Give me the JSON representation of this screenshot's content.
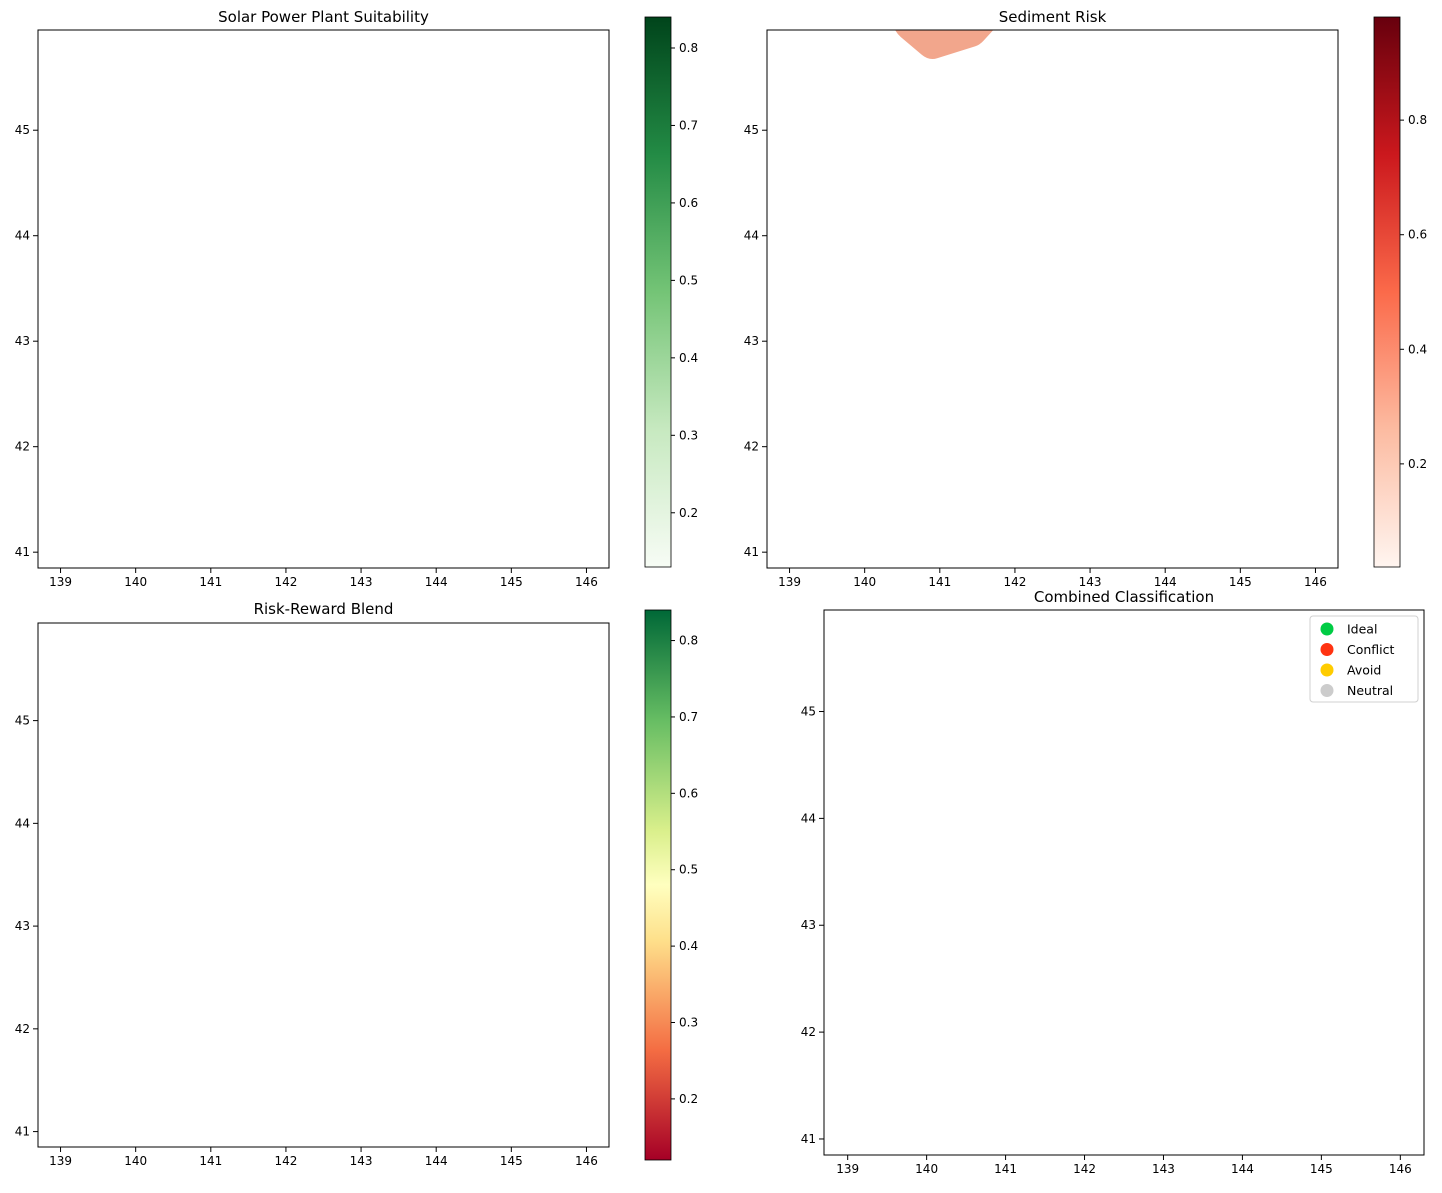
{
  "figure": {
    "panels": [
      {
        "id": "suitability",
        "title": "Solar Power Plant Suitability",
        "x_ticks": [
          "139",
          "140",
          "141",
          "142",
          "143",
          "144",
          "145",
          "146"
        ],
        "y_ticks": [
          "41",
          "42",
          "43",
          "44",
          "45"
        ],
        "colorbar": {
          "colormap": "Greens",
          "range": [
            0.13,
            0.84
          ],
          "tick_labels": [
            "0.2",
            "0.3",
            "0.4",
            "0.5",
            "0.6",
            "0.7",
            "0.8"
          ],
          "tick_values": [
            0.2,
            0.3,
            0.4,
            0.5,
            0.6,
            0.7,
            0.8
          ]
        }
      },
      {
        "id": "sediment",
        "title": "Sediment Risk",
        "x_ticks": [
          "139",
          "140",
          "141",
          "142",
          "143",
          "144",
          "145",
          "146"
        ],
        "y_ticks": [
          "41",
          "42",
          "43",
          "44",
          "45"
        ],
        "colorbar": {
          "colormap": "Reds",
          "range": [
            0.02,
            0.98
          ],
          "tick_labels": [
            "0.2",
            "0.4",
            "0.6",
            "0.8"
          ],
          "tick_values": [
            0.2,
            0.4,
            0.6,
            0.8
          ]
        }
      },
      {
        "id": "blend",
        "title": "Risk-Reward Blend",
        "x_ticks": [
          "139",
          "140",
          "141",
          "142",
          "143",
          "144",
          "145",
          "146"
        ],
        "y_ticks": [
          "41",
          "42",
          "43",
          "44",
          "45"
        ],
        "colorbar": {
          "colormap": "RdYlGn",
          "range": [
            0.12,
            0.84
          ],
          "tick_labels": [
            "0.2",
            "0.3",
            "0.4",
            "0.5",
            "0.6",
            "0.7",
            "0.8"
          ],
          "tick_values": [
            0.2,
            0.3,
            0.4,
            0.5,
            0.6,
            0.7,
            0.8
          ]
        }
      },
      {
        "id": "classification",
        "title": "Combined Classification",
        "x_ticks": [
          "139",
          "140",
          "141",
          "142",
          "143",
          "144",
          "145",
          "146"
        ],
        "y_ticks": [
          "41",
          "42",
          "43",
          "44",
          "45"
        ],
        "legend": {
          "position": "upper-right",
          "items": [
            {
              "label": "Ideal",
              "color": "#00cc44"
            },
            {
              "label": "Conflict",
              "color": "#ff3311"
            },
            {
              "label": "Avoid",
              "color": "#ffcc00"
            },
            {
              "label": "Neutral",
              "color": "#cccccc"
            }
          ]
        }
      }
    ],
    "colors": {
      "suitability_outer": "#eef7eb",
      "suitability_inner": "#d6efd0",
      "suitability_coast": "#157a3c",
      "sediment_fill": "#fcd3c1",
      "sediment_dot_dark": "#b01015",
      "sediment_dot_mid": "#ee4a36",
      "blend_outer": "#c9313b",
      "blend_inner": "#f79a5c",
      "blend_glow": "#fee08b",
      "blend_coast": "#1a9850",
      "neutral": "#cccccc",
      "avoid": "#ffcc00",
      "ideal": "#00cc44",
      "conflict": "#ff3311"
    }
  }
}
